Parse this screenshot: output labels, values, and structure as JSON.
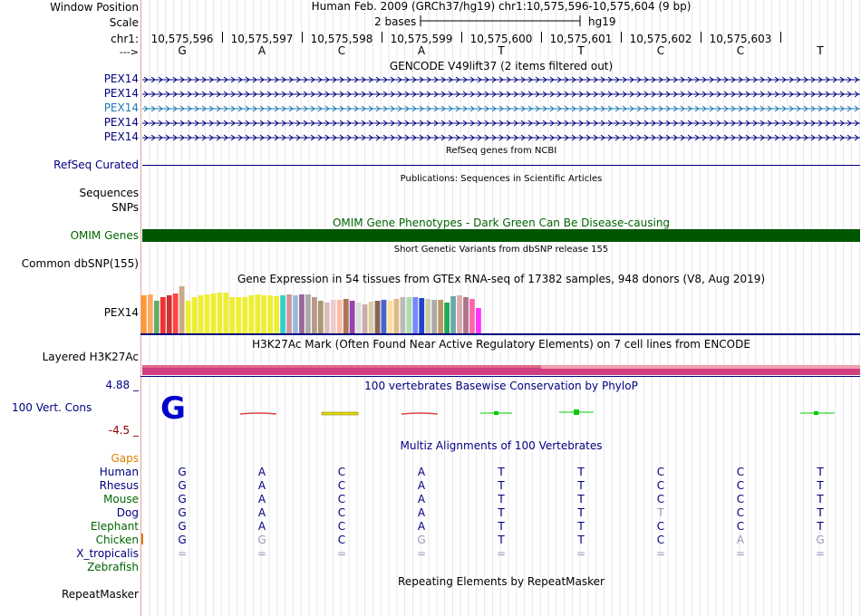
{
  "header": {
    "window_position_label": "Window Position",
    "window_position_value": "Human Feb. 2009 (GRCh37/hg19)   chr1:10,575,596-10,575,604 (9 bp)",
    "scale_label": "Scale",
    "scale_text": "2 bases",
    "scale_assembly": "hg19",
    "chr_label": "chr1:",
    "strand_label": "--->",
    "positions": [
      "10,575,596",
      "10,575,597",
      "10,575,598",
      "10,575,599",
      "10,575,600",
      "10,575,601",
      "10,575,602",
      "10,575,603"
    ]
  },
  "bases": [
    "G",
    "A",
    "C",
    "A",
    "T",
    "T",
    "C",
    "C",
    "T"
  ],
  "gencode": {
    "title": "GENCODE V49lift37 (2 items filtered out)",
    "items": [
      "PEX14",
      "PEX14",
      "PEX14",
      "PEX14",
      "PEX14"
    ]
  },
  "refseq": {
    "title": "RefSeq genes from NCBI",
    "label": "RefSeq Curated"
  },
  "publications": {
    "title": "Publications: Sequences in Scientific Articles",
    "sequences_label": "Sequences",
    "snps_label": "SNPs"
  },
  "omim": {
    "title": "OMIM Gene Phenotypes - Dark Green Can Be Disease-causing",
    "label": "OMIM Genes"
  },
  "dbsnp": {
    "title": "Short Genetic Variants from dbSNP release 155",
    "label": "Common dbSNP(155)"
  },
  "gtex": {
    "title": "Gene Expression in 54 tissues from GTEx RNA-seq of 17382 samples, 948 donors (V8, Aug 2019)",
    "label": "PEX14",
    "values": [
      42,
      43,
      36,
      40,
      42,
      44,
      52,
      36,
      40,
      42,
      43,
      44,
      45,
      45,
      40,
      40,
      40,
      42,
      43,
      42,
      42,
      41,
      42,
      43,
      42,
      43,
      43,
      40,
      36,
      34,
      37,
      37,
      38,
      36,
      34,
      32,
      35,
      36,
      37,
      36,
      38,
      40,
      40,
      40,
      39,
      38,
      37,
      37,
      34,
      41,
      42,
      40,
      38,
      28
    ],
    "colors": [
      "#ff9933",
      "#ffaa66",
      "#66aa66",
      "#ee3333",
      "#cc3333",
      "#ff4444",
      "#ccaa88",
      "#eeee33",
      "#eeee33",
      "#eeee33",
      "#eeee33",
      "#eeee33",
      "#eeee33",
      "#eeee33",
      "#eeee33",
      "#eeee33",
      "#eeee33",
      "#eeee33",
      "#eeee33",
      "#eeee33",
      "#eeee33",
      "#eeee33",
      "#33cccc",
      "#cc9999",
      "#99bbdd",
      "#996699",
      "#aaaaaa",
      "#bb9988",
      "#aa9977",
      "#ddbbbb",
      "#eecccc",
      "#ffbbaa",
      "#aa7755",
      "#9944aa",
      "#dddddd",
      "#ccaaaa",
      "#ddccaa",
      "#886655",
      "#4466cc",
      "#ffdd99",
      "#ddbb88",
      "#bbbbbb",
      "#aaddaa",
      "#7788ff",
      "#2244cc",
      "#ccccaa",
      "#aaaaaa",
      "#bb9966",
      "#22aa55",
      "#66aaaa",
      "#ddaaaa",
      "#aa7788",
      "#ff66aa",
      "#ff33ff"
    ]
  },
  "h3k27ac": {
    "title": "H3K27Ac Mark (Often Found Near Active Regulatory Elements) on 7 cell lines from ENCODE",
    "label": "Layered H3K27Ac"
  },
  "phylop": {
    "title": "100 vertebrates Basewise Conservation by PhyloP",
    "label": "100 Vert. Cons",
    "max": "4.88 _",
    "min": "-4.5 _"
  },
  "multiz": {
    "title": "Multiz Alignments of 100 Vertebrates",
    "gaps_label": "Gaps",
    "species": [
      {
        "name": "Human",
        "color": "#000080",
        "bases": [
          "G",
          "A",
          "C",
          "A",
          "T",
          "T",
          "C",
          "C",
          "T"
        ]
      },
      {
        "name": "Rhesus",
        "color": "#000080",
        "bases": [
          "G",
          "A",
          "C",
          "A",
          "T",
          "T",
          "C",
          "C",
          "T"
        ]
      },
      {
        "name": "Mouse",
        "color": "#006600",
        "bases": [
          "G",
          "A",
          "C",
          "A",
          "T",
          "T",
          "C",
          "C",
          "T"
        ]
      },
      {
        "name": "Dog",
        "color": "#000080",
        "bases": [
          "G",
          "A",
          "C",
          "A",
          "T",
          "T",
          "T",
          "C",
          "T"
        ]
      },
      {
        "name": "Elephant",
        "color": "#006600",
        "bases": [
          "G",
          "A",
          "C",
          "A",
          "T",
          "T",
          "C",
          "C",
          "T"
        ]
      },
      {
        "name": "Chicken",
        "color": "#006600",
        "bases": [
          "G",
          "G",
          "C",
          "G",
          "T",
          "T",
          "C",
          "A",
          "G"
        ]
      },
      {
        "name": "X_tropicalis",
        "color": "#000080",
        "bases": [
          "=",
          "=",
          "=",
          "=",
          "=",
          "=",
          "=",
          "=",
          "="
        ]
      },
      {
        "name": "Zebrafish",
        "color": "#006600",
        "bases": [
          "",
          "",
          "",
          "",
          "",
          "",
          "",
          "",
          ""
        ]
      }
    ]
  },
  "repeatmasker": {
    "title": "Repeating Elements by RepeatMasker",
    "label": "RepeatMasker"
  },
  "colors": {
    "track_blue": "#000080",
    "omim_green": "#005500",
    "h3k_pink": "#d04080",
    "gap_orange": "#e08000"
  }
}
